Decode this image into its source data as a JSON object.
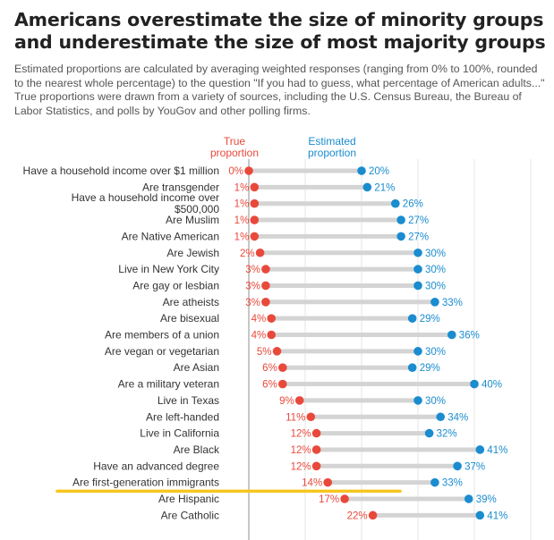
{
  "title": "Americans overestimate the size of minority groups and underestimate the size of most majority groups",
  "subtitle": "Estimated proportions are calculated by averaging weighted responses (ranging from 0% to 100%, rounded to the nearest whole percentage) to the question \"If you had to guess, what percentage of American adults...\" True proportions were drawn from a variety of sources, including the U.S. Census Bureau, the Bureau of Labor Statistics, and polls by YouGov and other polling firms.",
  "colors": {
    "true": "#e8493b",
    "estimated": "#1a8ccf",
    "connector": "#d4d4d4",
    "highlight": "#f7c51e",
    "grid": "#e6e6e6"
  },
  "chart_data": {
    "type": "dumbbell",
    "legend": {
      "true_label": [
        "True",
        "proportion"
      ],
      "estimated_label": [
        "Estimated",
        "proportion"
      ]
    },
    "xlim": [
      0,
      100
    ],
    "grid": true,
    "series": [
      {
        "name": "True proportion",
        "key": "true"
      },
      {
        "name": "Estimated proportion",
        "key": "estimated"
      }
    ],
    "rows": [
      {
        "label": [
          "Have a household income over $1 million"
        ],
        "true": 0,
        "estimated": 20,
        "true_text": "0%",
        "est_text": "20%"
      },
      {
        "label": [
          "Are transgender"
        ],
        "true": 1,
        "estimated": 21,
        "true_text": "1%",
        "est_text": "21%"
      },
      {
        "label": [
          "Have a household income over",
          "$500,000"
        ],
        "true": 1,
        "estimated": 26,
        "true_text": "1%",
        "est_text": "26%"
      },
      {
        "label": [
          "Are Muslim"
        ],
        "true": 1,
        "estimated": 27,
        "true_text": "1%",
        "est_text": "27%"
      },
      {
        "label": [
          "Are Native American"
        ],
        "true": 1,
        "estimated": 27,
        "true_text": "1%",
        "est_text": "27%"
      },
      {
        "label": [
          "Are Jewish"
        ],
        "true": 2,
        "estimated": 30,
        "true_text": "2%",
        "est_text": "30%"
      },
      {
        "label": [
          "Live in New York City"
        ],
        "true": 3,
        "estimated": 30,
        "true_text": "3%",
        "est_text": "30%"
      },
      {
        "label": [
          "Are gay or lesbian"
        ],
        "true": 3,
        "estimated": 30,
        "true_text": "3%",
        "est_text": "30%"
      },
      {
        "label": [
          "Are atheists"
        ],
        "true": 3,
        "estimated": 33,
        "true_text": "3%",
        "est_text": "33%"
      },
      {
        "label": [
          "Are bisexual"
        ],
        "true": 4,
        "estimated": 29,
        "true_text": "4%",
        "est_text": "29%"
      },
      {
        "label": [
          "Are members of a union"
        ],
        "true": 4,
        "estimated": 36,
        "true_text": "4%",
        "est_text": "36%"
      },
      {
        "label": [
          "Are vegan or vegetarian"
        ],
        "true": 5,
        "estimated": 30,
        "true_text": "5%",
        "est_text": "30%"
      },
      {
        "label": [
          "Are Asian"
        ],
        "true": 6,
        "estimated": 29,
        "true_text": "6%",
        "est_text": "29%"
      },
      {
        "label": [
          "Are a military veteran"
        ],
        "true": 6,
        "estimated": 40,
        "true_text": "6%",
        "est_text": "40%"
      },
      {
        "label": [
          "Live in Texas"
        ],
        "true": 9,
        "estimated": 30,
        "true_text": "9%",
        "est_text": "30%"
      },
      {
        "label": [
          "Are left-handed"
        ],
        "true": 11,
        "estimated": 34,
        "true_text": "11%",
        "est_text": "34%"
      },
      {
        "label": [
          "Live in California"
        ],
        "true": 12,
        "estimated": 32,
        "true_text": "12%",
        "est_text": "32%"
      },
      {
        "label": [
          "Are Black"
        ],
        "true": 12,
        "estimated": 41,
        "true_text": "12%",
        "est_text": "41%"
      },
      {
        "label": [
          "Have an advanced degree"
        ],
        "true": 12,
        "estimated": 37,
        "true_text": "12%",
        "est_text": "37%"
      },
      {
        "label": [
          "Are first-generation immigrants"
        ],
        "true": 14,
        "estimated": 33,
        "true_text": "14%",
        "est_text": "33%"
      },
      {
        "label": [
          "Are Hispanic"
        ],
        "true": 17,
        "estimated": 39,
        "true_text": "17%",
        "est_text": "39%"
      },
      {
        "label": [
          "Are Catholic"
        ],
        "true": 22,
        "estimated": 41,
        "true_text": "22%",
        "est_text": "41%"
      }
    ],
    "highlight_after_row": "Are first-generation immigrants"
  }
}
